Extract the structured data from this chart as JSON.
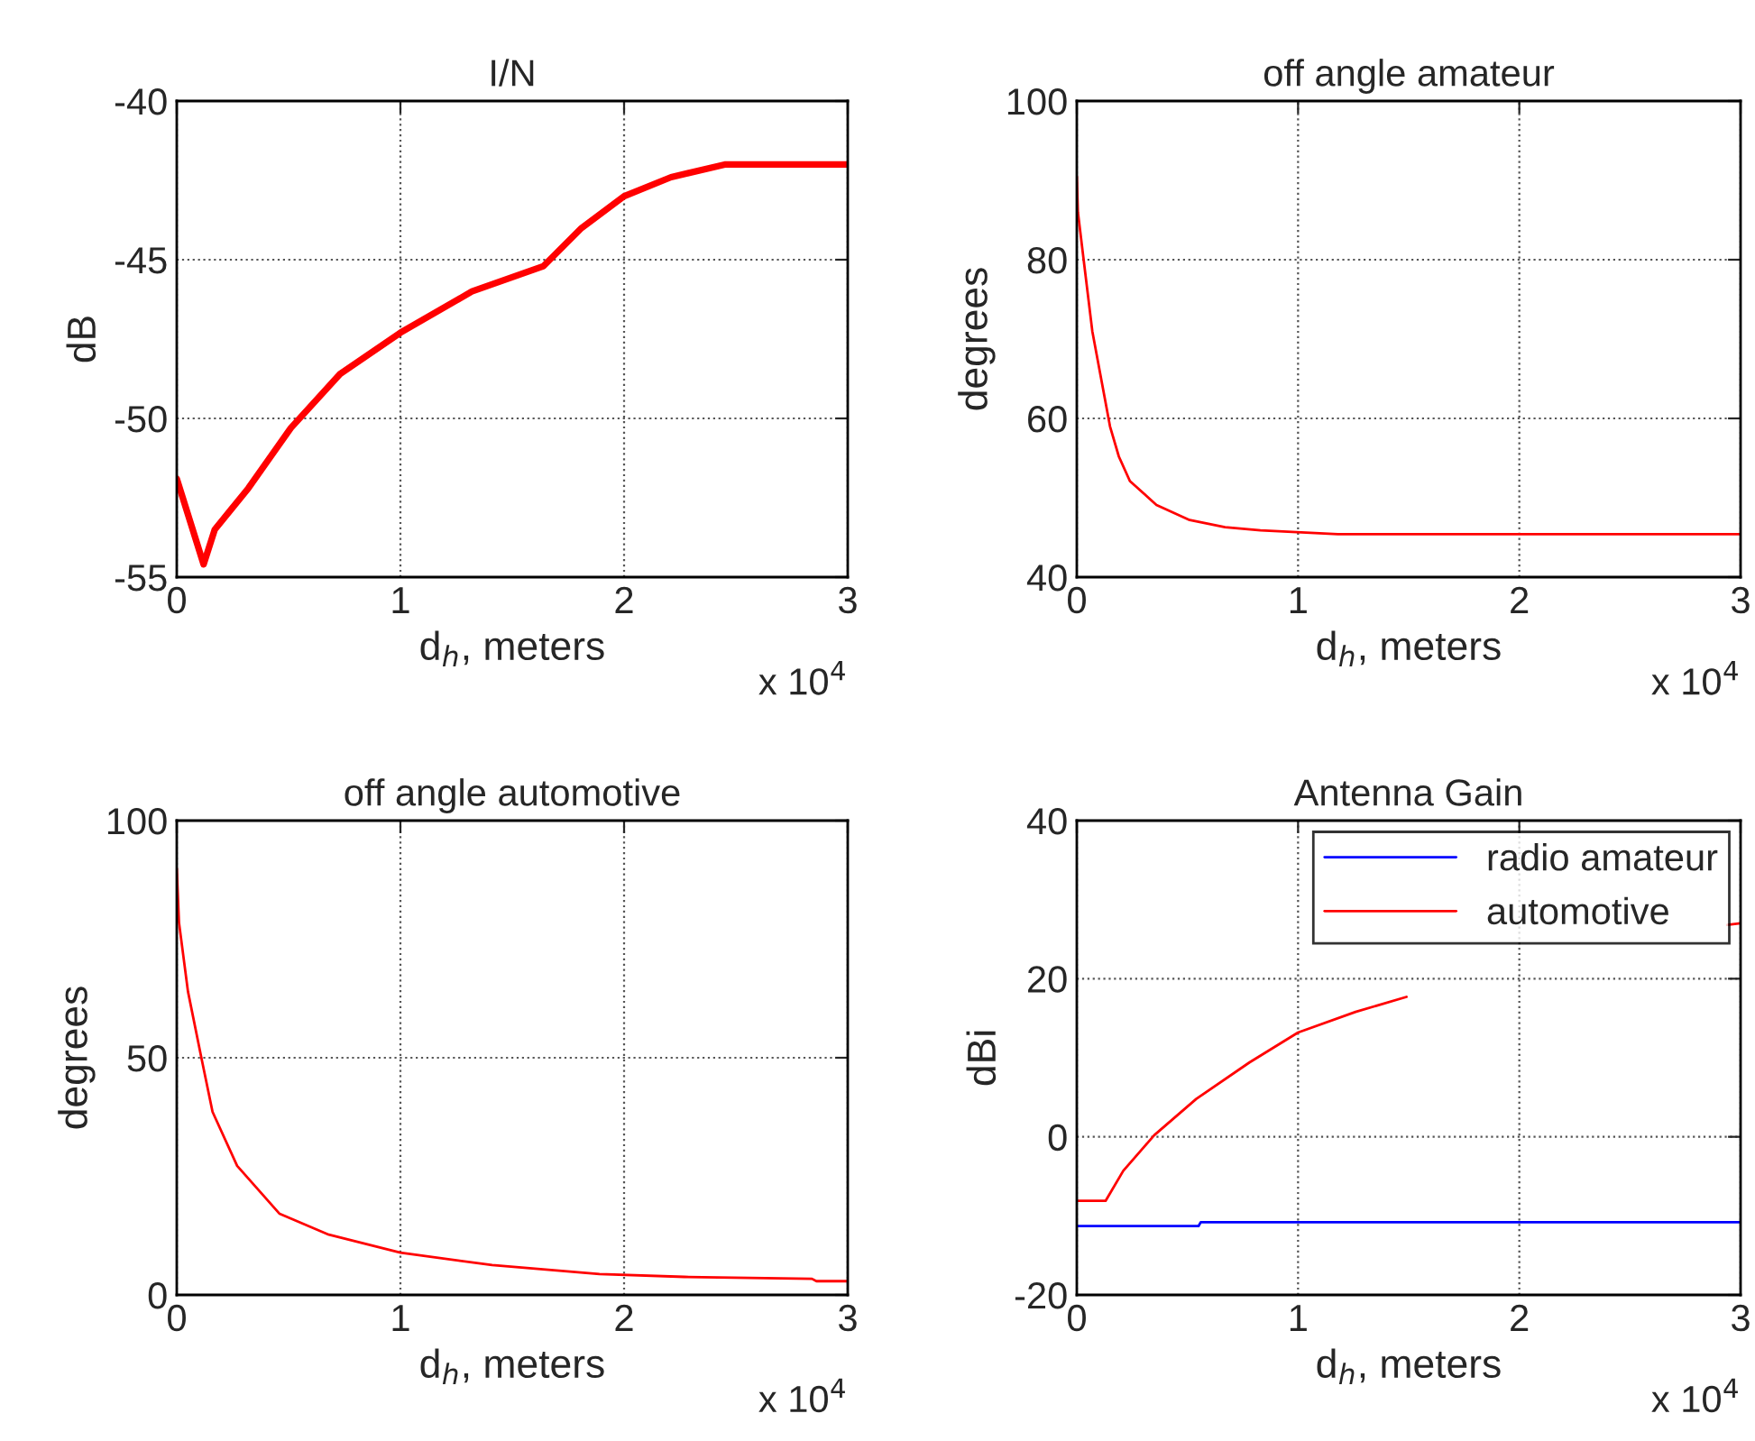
{
  "chart_data": [
    {
      "type": "line",
      "title": "I/N",
      "xlabel": "d$_{h}$, meters",
      "ylabel": "dB",
      "annotations": [
        "x 10$^{4}$"
      ],
      "grid": true,
      "legend": false,
      "xlim": [
        0,
        3
      ],
      "xticks": [
        0,
        1,
        2,
        3
      ],
      "ylim": [
        -55,
        -40
      ],
      "yticks": [
        -55,
        -50,
        -45,
        -40
      ],
      "series": [
        {
          "color": "#ff0000",
          "x": [
            0,
            0.12,
            0.17,
            0.32,
            0.51,
            0.73,
            1.0,
            1.32,
            1.64,
            1.81,
            2.0,
            2.21,
            2.45,
            3.0
          ],
          "values": [
            -51.9,
            -54.6,
            -53.5,
            -52.2,
            -50.3,
            -48.6,
            -47.3,
            -46.0,
            -45.2,
            -44.0,
            -43.0,
            -42.4,
            -42.0,
            -42.0
          ]
        }
      ]
    },
    {
      "type": "line",
      "title": "off angle amateur",
      "xlabel": "d$_{h}$, meters",
      "ylabel": "degrees",
      "annotations": [
        "x 10$^{4}$"
      ],
      "grid": true,
      "legend": false,
      "xlim": [
        0,
        3
      ],
      "xticks": [
        0,
        1,
        2,
        3
      ],
      "ylim": [
        40,
        100
      ],
      "yticks": [
        40,
        60,
        80,
        100
      ],
      "series": [
        {
          "color": "#ff0000",
          "x": [
            0,
            0.005,
            0.03,
            0.07,
            0.11,
            0.15,
            0.19,
            0.24,
            0.36,
            0.51,
            0.67,
            0.83,
            1.18,
            3.0
          ],
          "values": [
            90.5,
            86,
            80.2,
            71,
            65,
            59,
            55.2,
            52.1,
            49.1,
            47.2,
            46.3,
            45.9,
            45.4,
            45.4
          ]
        }
      ]
    },
    {
      "type": "line",
      "title": "off angle automotive",
      "xlabel": "d$_{h}$, meters",
      "ylabel": "degrees",
      "annotations": [
        "x 10$^{4}$"
      ],
      "grid": true,
      "legend": false,
      "xlim": [
        0,
        3
      ],
      "xticks": [
        0,
        1,
        2,
        3
      ],
      "ylim": [
        0,
        100
      ],
      "yticks": [
        0,
        50,
        100
      ],
      "series": [
        {
          "color": "#ff0000",
          "x": [
            0,
            0.01,
            0.05,
            0.11,
            0.16,
            0.27,
            0.46,
            0.68,
            1.0,
            1.41,
            1.89,
            2.27,
            2.84,
            2.86,
            3.0
          ],
          "values": [
            89.9,
            78.5,
            64,
            50,
            38.6,
            27.2,
            17.1,
            12.7,
            8.9,
            6.3,
            4.4,
            3.8,
            3.4,
            2.9,
            2.9
          ]
        }
      ]
    },
    {
      "type": "line",
      "title": "Antenna Gain",
      "xlabel": "d$_{h}$, meters",
      "ylabel": "dBi",
      "annotations": [
        "x 10$^{4}$"
      ],
      "grid": true,
      "legend": "top right",
      "xlim": [
        0,
        3
      ],
      "xticks": [
        0,
        1,
        2,
        3
      ],
      "ylim": [
        -20,
        40
      ],
      "yticks": [
        -20,
        0,
        20,
        40
      ],
      "series": [
        {
          "name": "radio amateur",
          "color": "#0000ff",
          "x": [
            0,
            0.55,
            0.56,
            3.0
          ],
          "values": [
            -11.3,
            -11.3,
            -10.8,
            -10.8
          ]
        },
        {
          "name": "automotive",
          "color": "#ff0000",
          "x": [
            0,
            0.13,
            0.21,
            0.35,
            0.54,
            0.78,
            1.0,
            1.26,
            1.49,
            2.2,
            2.94,
            3.0
          ],
          "values": [
            -8.1,
            -8.1,
            -4.3,
            0.2,
            4.8,
            9.4,
            13.2,
            15.8,
            17.7,
            null,
            26.8,
            27.0
          ]
        }
      ]
    }
  ]
}
